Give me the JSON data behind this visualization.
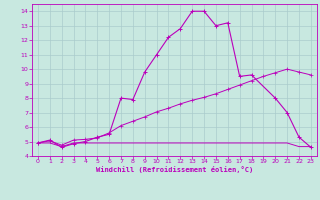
{
  "xlabel": "Windchill (Refroidissement éolien,°C)",
  "bg_color": "#c8e8e0",
  "grid_color": "#aacccc",
  "line_color": "#bb00bb",
  "xlim": [
    -0.5,
    23.5
  ],
  "ylim": [
    4,
    14.5
  ],
  "xticks": [
    0,
    1,
    2,
    3,
    4,
    5,
    6,
    7,
    8,
    9,
    10,
    11,
    12,
    13,
    14,
    15,
    16,
    17,
    18,
    19,
    20,
    21,
    22,
    23
  ],
  "yticks": [
    4,
    5,
    6,
    7,
    8,
    9,
    10,
    11,
    12,
    13,
    14
  ],
  "series0_x": [
    0,
    1,
    2,
    3,
    4,
    5,
    6,
    7,
    8,
    9,
    10,
    11,
    12,
    13,
    14,
    15,
    16,
    17,
    18,
    20,
    21,
    22,
    23
  ],
  "series0_y": [
    4.9,
    5.1,
    4.6,
    4.85,
    5.0,
    5.3,
    5.5,
    8.0,
    7.9,
    9.8,
    11.0,
    12.2,
    12.8,
    14.0,
    14.0,
    13.0,
    13.2,
    9.5,
    9.6,
    8.0,
    7.0,
    5.3,
    4.6
  ],
  "series1_x": [
    0,
    1,
    2,
    3,
    4,
    5,
    6,
    7,
    8,
    9,
    10,
    11,
    12,
    13,
    14,
    15,
    16,
    17,
    18,
    19,
    20,
    21,
    22,
    23
  ],
  "series1_y": [
    4.9,
    5.05,
    4.75,
    5.1,
    5.15,
    5.25,
    5.6,
    6.1,
    6.4,
    6.7,
    7.05,
    7.3,
    7.6,
    7.85,
    8.05,
    8.3,
    8.6,
    8.9,
    9.2,
    9.5,
    9.75,
    10.0,
    9.8,
    9.6
  ],
  "series2_x": [
    0,
    1,
    2,
    3,
    4,
    5,
    6,
    7,
    8,
    9,
    10,
    11,
    12,
    13,
    14,
    15,
    16,
    17,
    18,
    19,
    20,
    21,
    22,
    23
  ],
  "series2_y": [
    4.9,
    4.9,
    4.65,
    4.9,
    4.9,
    4.9,
    4.9,
    4.9,
    4.9,
    4.9,
    4.9,
    4.9,
    4.9,
    4.9,
    4.9,
    4.9,
    4.9,
    4.9,
    4.9,
    4.9,
    4.9,
    4.9,
    4.65,
    4.65
  ]
}
